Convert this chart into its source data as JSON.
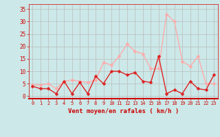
{
  "x": [
    0,
    1,
    2,
    3,
    4,
    5,
    6,
    7,
    8,
    9,
    10,
    11,
    12,
    13,
    14,
    15,
    16,
    17,
    18,
    19,
    20,
    21,
    22,
    23
  ],
  "wind_avg": [
    4,
    3,
    3,
    1,
    6,
    1,
    5.5,
    1,
    8,
    5,
    10,
    10,
    8.5,
    9.5,
    6,
    5.5,
    16,
    1,
    2.5,
    1,
    6,
    3,
    2.5,
    8.5
  ],
  "wind_gust": [
    4.5,
    4.5,
    5,
    3,
    6,
    6.5,
    6,
    5.5,
    6.5,
    13.5,
    12.5,
    16,
    21,
    18,
    17,
    11,
    11,
    33,
    30,
    14,
    12,
    16,
    5,
    5
  ],
  "bg_color": "#cce8e8",
  "avg_color": "#dd2222",
  "gust_color": "#ffaaaa",
  "grid_color": "#bbbbbb",
  "xlabel": "Vent moyen/en rafales ( km/h )",
  "xlabel_color": "#cc0000",
  "tick_color": "#cc0000",
  "yticks": [
    0,
    5,
    10,
    15,
    20,
    25,
    30,
    35
  ],
  "ylim": [
    -1,
    37
  ],
  "xlim": [
    -0.5,
    23.5
  ]
}
